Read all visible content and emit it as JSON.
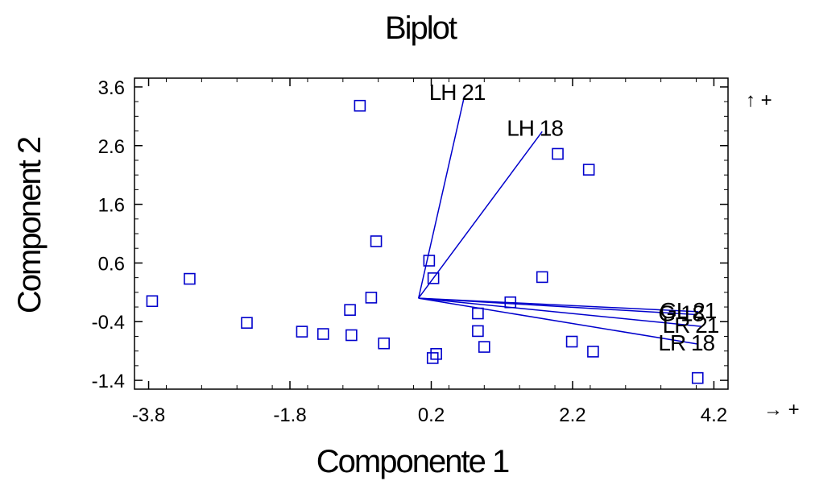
{
  "chart_data": {
    "type": "scatter",
    "title": "Biplot",
    "xlabel": "Componente 1",
    "ylabel": "Component 2",
    "xlim": [
      -4.0,
      4.4
    ],
    "ylim": [
      -1.55,
      3.75
    ],
    "xticks": [
      -3.8,
      -1.8,
      0.2,
      2.2,
      4.2
    ],
    "yticks": [
      -1.4,
      -0.4,
      0.6,
      1.6,
      2.6,
      3.6
    ],
    "xtick_labels": [
      "-3.8",
      "-1.8",
      "0.2",
      "2.2",
      "4.2"
    ],
    "ytick_labels": [
      "-1.4",
      "-0.4",
      "0.6",
      "1.6",
      "2.6",
      "3.6"
    ],
    "grid": false,
    "marker": "square",
    "color": "#0000cc",
    "points": [
      {
        "x": -3.75,
        "y": -0.05
      },
      {
        "x": -3.22,
        "y": 0.33
      },
      {
        "x": -2.41,
        "y": -0.42
      },
      {
        "x": -1.63,
        "y": -0.57
      },
      {
        "x": -1.33,
        "y": -0.61
      },
      {
        "x": -0.95,
        "y": -0.2
      },
      {
        "x": -0.93,
        "y": -0.63
      },
      {
        "x": -0.81,
        "y": 3.28
      },
      {
        "x": -0.65,
        "y": 0.01
      },
      {
        "x": -0.58,
        "y": 0.97
      },
      {
        "x": -0.47,
        "y": -0.77
      },
      {
        "x": 0.17,
        "y": 0.64
      },
      {
        "x": 0.23,
        "y": 0.34
      },
      {
        "x": 0.22,
        "y": -1.02
      },
      {
        "x": 0.27,
        "y": -0.95
      },
      {
        "x": 0.86,
        "y": -0.26
      },
      {
        "x": 0.86,
        "y": -0.56
      },
      {
        "x": 0.95,
        "y": -0.83
      },
      {
        "x": 1.32,
        "y": -0.07
      },
      {
        "x": 1.77,
        "y": 0.36
      },
      {
        "x": 1.99,
        "y": 2.46
      },
      {
        "x": 2.19,
        "y": -0.74
      },
      {
        "x": 2.43,
        "y": 2.19
      },
      {
        "x": 2.49,
        "y": -0.91
      },
      {
        "x": 3.97,
        "y": -1.36
      }
    ],
    "vectors": [
      {
        "label": "LH 21",
        "origin": [
          0.02,
          0.0
        ],
        "end": [
          0.67,
          3.45
        ]
      },
      {
        "label": "LH 18",
        "origin": [
          0.02,
          0.0
        ],
        "end": [
          1.77,
          2.84
        ]
      },
      {
        "label": "GL 21",
        "origin": [
          0.02,
          0.0
        ],
        "end": [
          3.98,
          -0.23
        ]
      },
      {
        "label": "G 18",
        "origin": [
          0.02,
          0.0
        ],
        "end": [
          3.96,
          -0.28
        ]
      },
      {
        "label": "LR 21",
        "origin": [
          0.02,
          0.0
        ],
        "end": [
          4.02,
          -0.48
        ]
      },
      {
        "label": "LR 18",
        "origin": [
          0.02,
          0.0
        ],
        "end": [
          3.96,
          -0.78
        ]
      }
    ],
    "axis_direction_labels": {
      "x": "→ +",
      "y": "↑ +"
    }
  }
}
